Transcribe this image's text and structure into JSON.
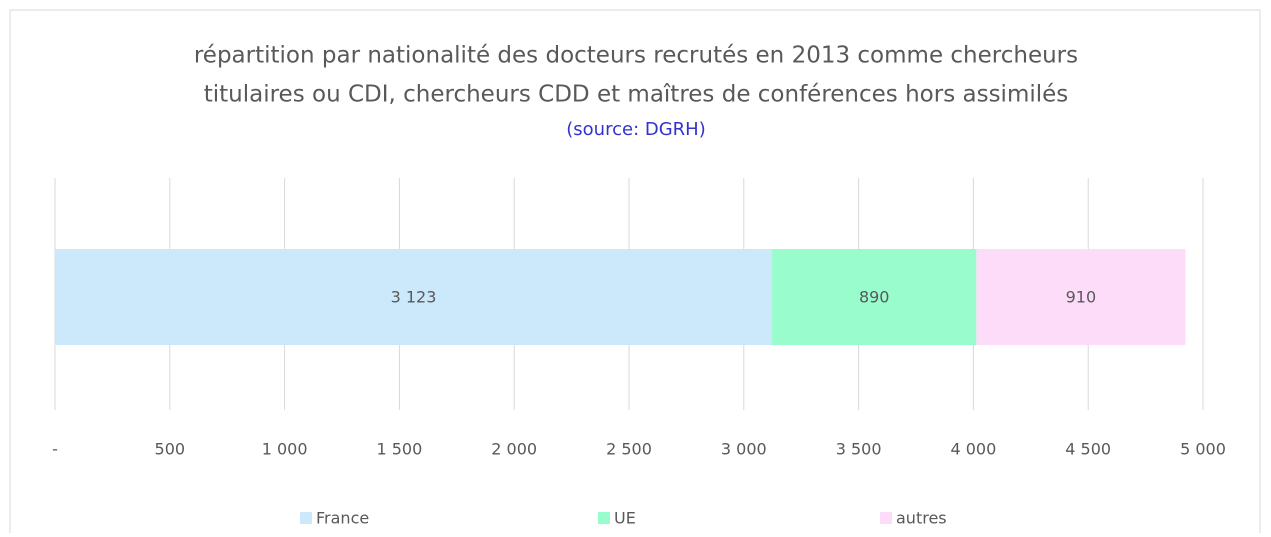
{
  "chart_data": {
    "type": "stacked_barh",
    "title": [
      "répartition par nationalité des docteurs recrutés en 2013 comme chercheurs",
      "titulaires ou CDI, chercheurs CDD et maîtres de conférences hors assimilés"
    ],
    "subtitle": "(source: DGRH)",
    "categories": [
      null
    ],
    "series": [
      {
        "name": "France",
        "color": "#cce9fb",
        "values": [
          3123
        ],
        "value_labels": [
          "3 123"
        ]
      },
      {
        "name": "UE",
        "color": "#99fccc",
        "values": [
          890
        ],
        "value_labels": [
          "890"
        ]
      },
      {
        "name": "autres",
        "color": "#fddcf9",
        "values": [
          910
        ],
        "value_labels": [
          "910"
        ]
      }
    ],
    "xlim": [
      0,
      5000
    ],
    "xticks": [
      {
        "value": 0,
        "label": "-"
      },
      500,
      {
        "value": 1000,
        "label": "1 000"
      },
      {
        "value": 1500,
        "label": "1 500"
      },
      {
        "value": 2000,
        "label": "2 000"
      },
      {
        "value": 2500,
        "label": "2 500"
      },
      {
        "value": 3000,
        "label": "3 000"
      },
      {
        "value": 3500,
        "label": "3 500"
      },
      {
        "value": 4000,
        "label": "4 000"
      },
      {
        "value": 4500,
        "label": "4 500"
      },
      {
        "value": 5000,
        "label": "5 000"
      }
    ],
    "grid": true,
    "legend": "bottom"
  }
}
